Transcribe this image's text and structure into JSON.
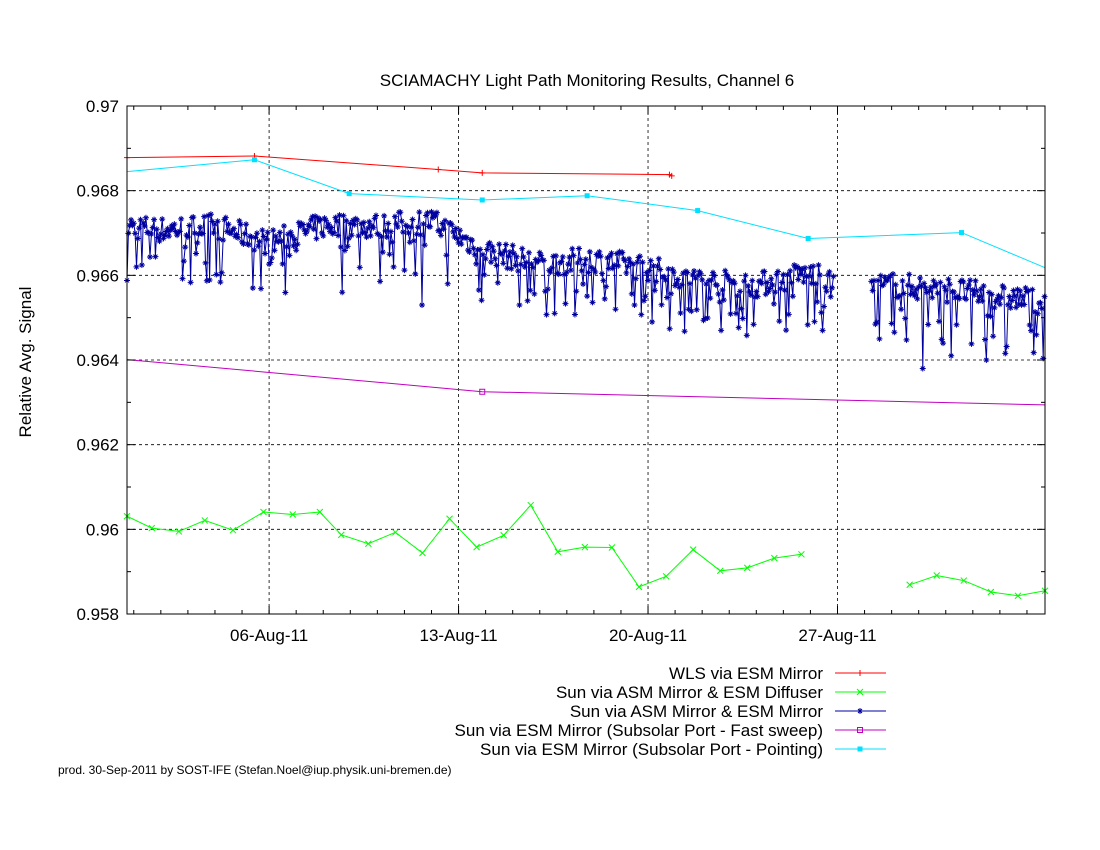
{
  "footer": "prod. 30-Sep-2011 by SOST-IFE (Stefan.Noel@iup.physik.uni-bremen.de)",
  "chart_data": {
    "type": "line",
    "title": "SCIAMACHY Light Path Monitoring Results, Channel 6",
    "xlabel": "",
    "ylabel": "Relative Avg. Signal",
    "x_unit": "date (2011)",
    "xlim": [
      "2011-07-31T18:00",
      "2011-09-03T16:00"
    ],
    "ylim": [
      0.958,
      0.97
    ],
    "yticks": [
      0.958,
      0.96,
      0.962,
      0.964,
      0.966,
      0.968,
      0.97
    ],
    "ytick_labels": [
      "0.958",
      "0.96",
      "0.962",
      "0.964",
      "0.966",
      "0.968",
      "0.97"
    ],
    "xticks": [
      "2011-08-06",
      "2011-08-13",
      "2011-08-20",
      "2011-08-27"
    ],
    "xtick_labels": [
      "06-Aug-11",
      "13-Aug-11",
      "20-Aug-11",
      "27-Aug-11"
    ],
    "grid": true,
    "legend_position": "below-right",
    "series": [
      {
        "name": "WLS via ESM Mirror",
        "color": "#ff0000",
        "marker": "plus",
        "x": [
          "2011-07-31T18:00",
          "2011-08-05T11:00",
          "2011-08-12T06:00",
          "2011-08-13T21:00",
          "2011-08-20T19:00",
          "2011-08-20T21:00"
        ],
        "y": [
          0.96878,
          0.96882,
          0.9685,
          0.96842,
          0.96838,
          0.96835
        ]
      },
      {
        "name": "Sun via ASM Mirror & ESM Diffuser",
        "color": "#00ff00",
        "marker": "x",
        "x": [
          "2011-07-31T18:00",
          "2011-08-01T16:00",
          "2011-08-02T16:00",
          "2011-08-03T15:00",
          "2011-08-04T16:00",
          "2011-08-05T19:00",
          "2011-08-06T21:00",
          "2011-08-07T21:00",
          "2011-08-08T16:00",
          "2011-08-09T16:00",
          "2011-08-10T16:00",
          "2011-08-11T16:00",
          "2011-08-12T16:00",
          "2011-08-13T16:00",
          "2011-08-14T16:00",
          "2011-08-15T16:00",
          "2011-08-16T16:00",
          "2011-08-17T16:00",
          "2011-08-18T16:00",
          "2011-08-19T16:00",
          "2011-08-20T16:00",
          "2011-08-21T16:00",
          "2011-08-22T16:00",
          "2011-08-23T16:00",
          "2011-08-24T16:00",
          "2011-08-25T16:00",
          "2011-08-29T16:00",
          "2011-08-30T16:00",
          "2011-08-31T16:00",
          "2011-09-01T16:00",
          "2011-09-02T16:00",
          "2011-09-03T16:00"
        ],
        "y": [
          0.96031,
          0.96003,
          0.95995,
          0.96021,
          0.95998,
          0.96041,
          0.96035,
          0.96041,
          0.95987,
          0.95966,
          0.95993,
          0.95944,
          0.96025,
          0.95958,
          0.95986,
          0.96057,
          0.95947,
          0.95958,
          0.95957,
          0.95864,
          0.95889,
          0.95952,
          0.95902,
          0.95909,
          0.95932,
          0.95941,
          0.95869,
          0.95891,
          0.95879,
          0.95852,
          0.95843,
          0.95855
        ]
      },
      {
        "name": "Sun via ASM Mirror & ESM Mirror",
        "color": "#0000a0",
        "marker": "star",
        "anchors_x": [
          "2011-07-31T18:00",
          "2011-08-02T00:00",
          "2011-08-04T00:00",
          "2011-08-06T00:00",
          "2011-08-08T00:00",
          "2011-08-10T00:00",
          "2011-08-12T00:00",
          "2011-08-14T00:00",
          "2011-08-16T00:00",
          "2011-08-18T00:00",
          "2011-08-20T00:00",
          "2011-08-22T00:00",
          "2011-08-24T00:00",
          "2011-08-26T00:00",
          "2011-08-27T00:00",
          "2011-08-29T00:00",
          "2011-08-31T00:00",
          "2011-09-03T16:00"
        ],
        "anchors_y": [
          0.9672,
          0.9671,
          0.9672,
          0.9668,
          0.9672,
          0.9672,
          0.9673,
          0.9666,
          0.9663,
          0.9664,
          0.9662,
          0.9659,
          0.9658,
          0.9661,
          0.9657,
          0.9658,
          0.9657,
          0.9654
        ],
        "dips_x": [
          "2011-08-01T02:00",
          "2011-08-05T10:00",
          "2011-08-06T09:00",
          "2011-08-08T17:00",
          "2011-08-11T16:00",
          "2011-08-12T14:00",
          "2011-08-15T06:00",
          "2011-08-17T03:00",
          "2011-08-18T19:00",
          "2011-08-20T04:00",
          "2011-08-21T12:00",
          "2011-08-22T17:00",
          "2011-08-23T06:00",
          "2011-08-25T21:00",
          "2011-08-26T11:00",
          "2011-08-28T13:00",
          "2011-08-30T04:00",
          "2011-08-31T05:00",
          "2011-09-01T12:00",
          "2011-09-02T21:00"
        ],
        "dips_y": [
          0.9662,
          0.9657,
          0.9651,
          0.9656,
          0.9653,
          0.9658,
          0.9653,
          0.9656,
          0.9652,
          0.9649,
          0.9652,
          0.9647,
          0.9651,
          0.9652,
          0.9647,
          0.9645,
          0.9638,
          0.9641,
          0.964,
          0.9636
        ],
        "gaps": [
          [
            "2011-08-26T21:00",
            "2011-08-28T06:00"
          ]
        ]
      },
      {
        "name": "Sun via ESM Mirror (Subsolar Port - Fast sweep)",
        "color": "#c000c0",
        "marker": "open-square",
        "x": [
          "2011-07-31T18:00",
          "2011-08-13T21:00",
          "2011-09-03T16:00"
        ],
        "y": [
          0.96401,
          0.96325,
          0.96294
        ],
        "markers_at": [
          "2011-08-13T21:00"
        ]
      },
      {
        "name": "Sun via ESM Mirror (Subsolar Port - Pointing)",
        "color": "#00e0ff",
        "marker": "filled-square",
        "x": [
          "2011-07-31T18:00",
          "2011-08-05T11:00",
          "2011-08-08T23:00",
          "2011-08-13T21:00",
          "2011-08-17T18:00",
          "2011-08-21T20:00",
          "2011-08-25T22:00",
          "2011-08-31T14:00",
          "2011-09-03T16:00"
        ],
        "y": [
          0.96845,
          0.96873,
          0.96793,
          0.96778,
          0.96788,
          0.96753,
          0.96687,
          0.96701,
          0.96618
        ],
        "markers_at": [
          "2011-08-05T11:00",
          "2011-08-08T23:00",
          "2011-08-13T21:00",
          "2011-08-17T18:00",
          "2011-08-21T20:00",
          "2011-08-25T22:00",
          "2011-08-31T14:00"
        ]
      }
    ]
  }
}
